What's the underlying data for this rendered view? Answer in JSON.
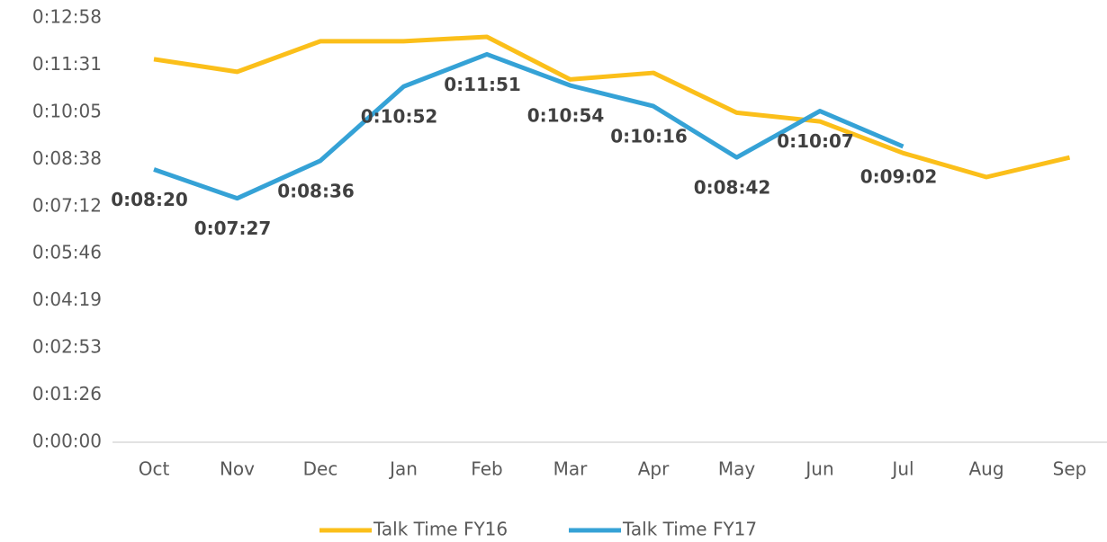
{
  "chart_data": {
    "type": "line",
    "categories": [
      "Oct",
      "Nov",
      "Dec",
      "Jan",
      "Feb",
      "Mar",
      "Apr",
      "May",
      "Jun",
      "Jul",
      "Aug",
      "Sep"
    ],
    "series": [
      {
        "name": "Talk Time FY16",
        "color": "#fbbf1a",
        "values": [
          702,
          679,
          735,
          735,
          743,
          665,
          677,
          604,
          588,
          530,
          486,
          522
        ]
      },
      {
        "name": "Talk Time FY17",
        "color": "#35a2d6",
        "values": [
          500,
          447,
          516,
          652,
          711,
          654,
          616,
          522,
          607,
          542,
          null,
          null
        ],
        "value_labels": [
          "0:08:20",
          "0:07:27",
          "0:08:36",
          "0:10:52",
          "0:11:51",
          "0:10:54",
          "0:10:16",
          "0:08:42",
          "0:10:07",
          "0:09:02",
          null,
          null
        ]
      }
    ],
    "ylim": [
      0,
      777.6
    ],
    "yticks": [
      {
        "value": 0,
        "label": "0:00:00"
      },
      {
        "value": 86.4,
        "label": "0:01:26"
      },
      {
        "value": 172.8,
        "label": "0:02:53"
      },
      {
        "value": 259.2,
        "label": "0:04:19"
      },
      {
        "value": 345.6,
        "label": "0:05:46"
      },
      {
        "value": 432,
        "label": "0:07:12"
      },
      {
        "value": 518.4,
        "label": "0:08:38"
      },
      {
        "value": 604.8,
        "label": "0:10:05"
      },
      {
        "value": 691.2,
        "label": "0:11:31"
      },
      {
        "value": 777.6,
        "label": "0:12:58"
      }
    ],
    "legend": "bottom"
  }
}
